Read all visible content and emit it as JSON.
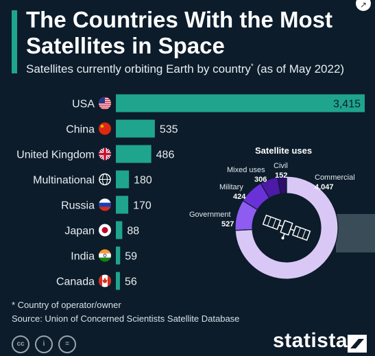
{
  "header": {
    "title": "The Countries With the Most Satellites in Space",
    "subtitle": "Satellites currently orbiting Earth by country",
    "subtitle_marker": "*",
    "subtitle_suffix": " (as of May 2022)"
  },
  "chart_data": [
    {
      "type": "bar",
      "orientation": "horizontal",
      "categories": [
        "USA",
        "China",
        "United Kingdom",
        "Multinational",
        "Russia",
        "Japan",
        "India",
        "Canada"
      ],
      "values": [
        3415,
        535,
        486,
        180,
        170,
        88,
        59,
        56
      ],
      "value_labels": [
        "3,415",
        "535",
        "486",
        "180",
        "170",
        "88",
        "59",
        "56"
      ],
      "icons": [
        "us-flag-icon",
        "china-flag-icon",
        "uk-flag-icon",
        "globe-icon",
        "russia-flag-icon",
        "japan-flag-icon",
        "india-flag-icon",
        "canada-flag-icon"
      ],
      "bar_color": "#1fa58e",
      "xlim": [
        0,
        3415
      ]
    },
    {
      "type": "pie",
      "variant": "donut",
      "title": "Satellite uses",
      "categories": [
        "Commercial",
        "Government",
        "Military",
        "Mixed uses",
        "Civil"
      ],
      "values": [
        4047,
        527,
        424,
        306,
        152
      ],
      "value_labels": [
        "4,047",
        "527",
        "424",
        "306",
        "152"
      ],
      "colors": [
        "#d9c8f5",
        "#8f5cf2",
        "#6a31d8",
        "#4c1aa6",
        "#2f0d6c"
      ]
    }
  ],
  "footer": {
    "footnote": "* Country of operator/owner",
    "source": "Source: Union of Concerned Scientists Satellite Database",
    "license_icons": [
      "cc-icon",
      "by-icon",
      "nd-icon"
    ],
    "license_labels": [
      "cc",
      "i",
      "="
    ],
    "brand": "statista"
  },
  "colors": {
    "background": "#0c1c2a",
    "accent": "#1fa58e",
    "text": "#ffffff"
  }
}
